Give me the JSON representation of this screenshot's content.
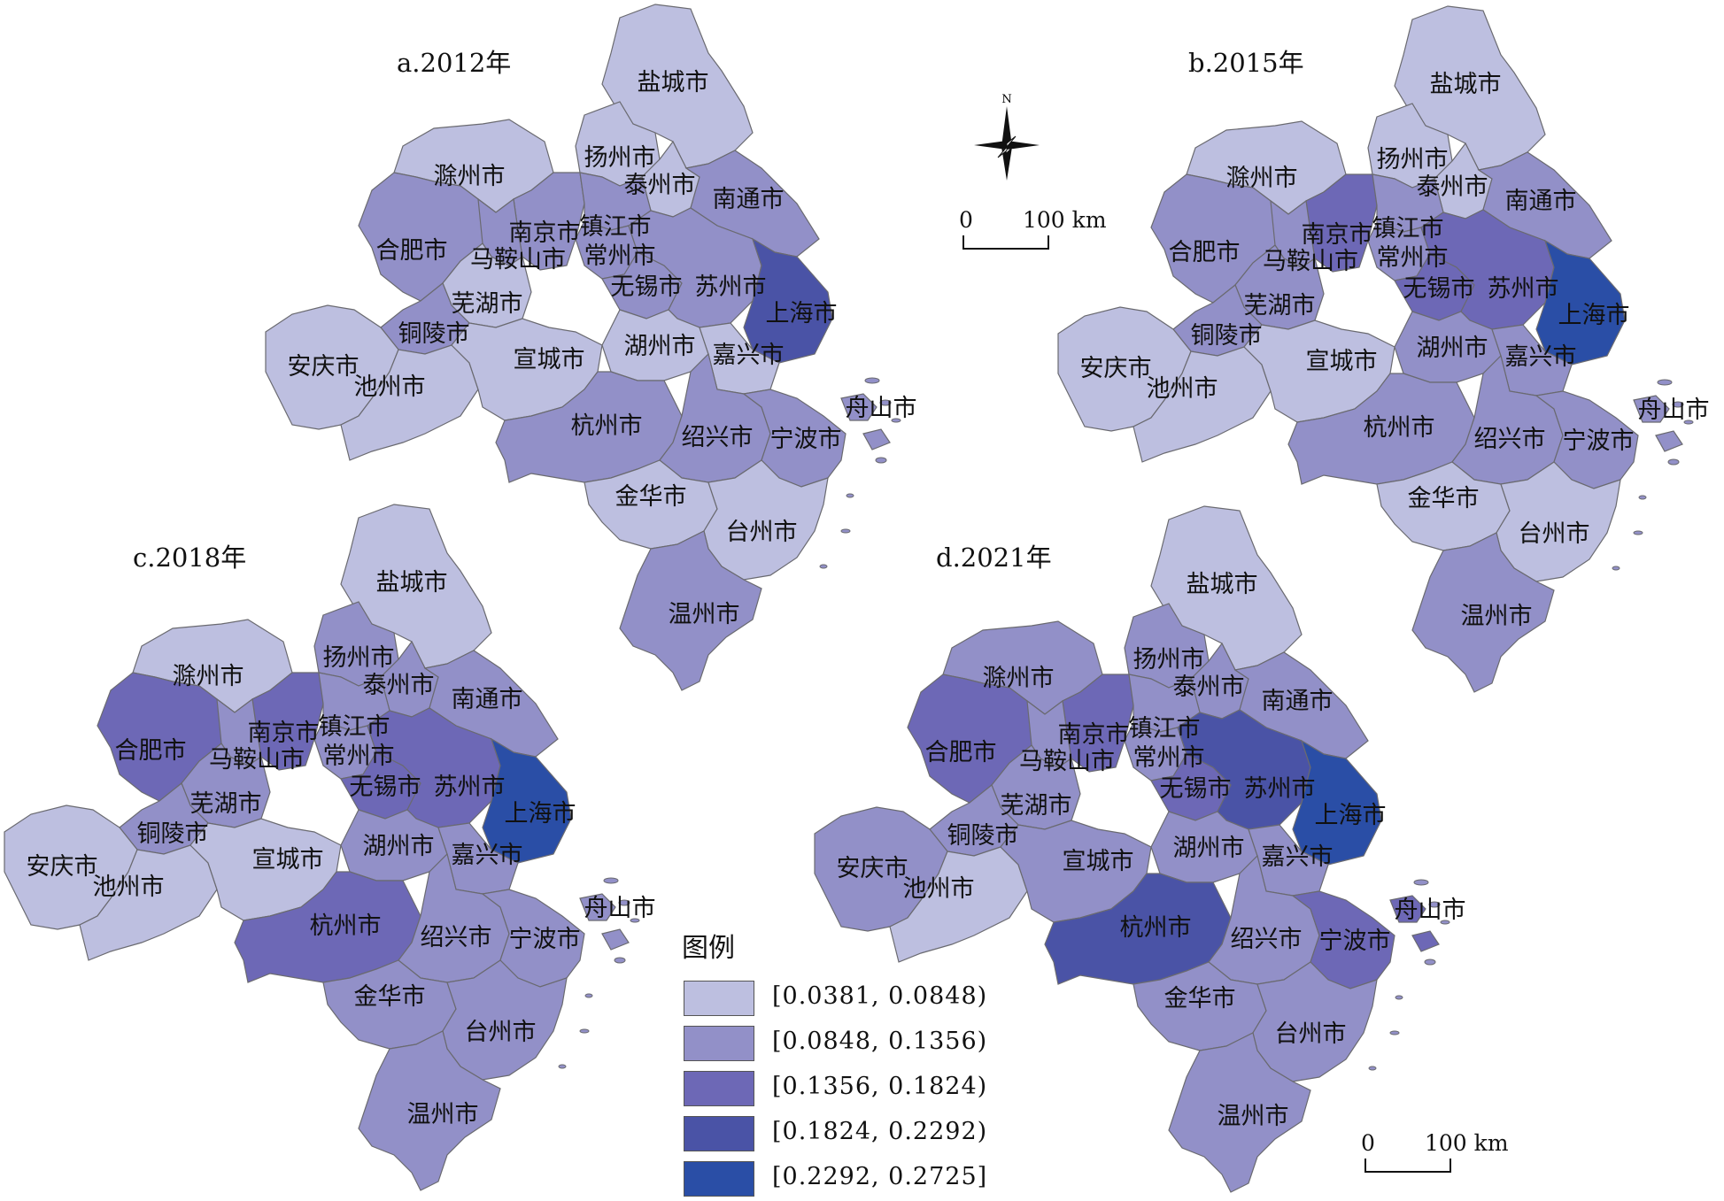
{
  "legend": {
    "title": "图例",
    "classes": [
      {
        "label": "[0.0381, 0.0848)",
        "color": "#bdbfe0"
      },
      {
        "label": "[0.0848, 0.1356)",
        "color": "#9290c8"
      },
      {
        "label": "[0.1356, 0.1824)",
        "color": "#6d68b6"
      },
      {
        "label": "[0.1824, 0.2292)",
        "color": "#4a53a6"
      },
      {
        "label": "[0.2292, 0.2725]",
        "color": "#2a4ea6"
      }
    ]
  },
  "compass": {
    "north_label": "N"
  },
  "scale": {
    "zero": "0",
    "distance": "100 km"
  },
  "panels": [
    {
      "title": "a.2012年",
      "classes": {
        "盐城市": 1,
        "扬州市": 1,
        "泰州市": 1,
        "南通市": 2,
        "滁州市": 1,
        "南京市": 2,
        "镇江市": 2,
        "常州市": 2,
        "合肥市": 2,
        "马鞍山市": 2,
        "芜湖市": 1,
        "铜陵市": 2,
        "无锡市": 2,
        "苏州市": 2,
        "上海市": 4,
        "安庆市": 1,
        "池州市": 1,
        "宣城市": 1,
        "湖州市": 1,
        "嘉兴市": 1,
        "杭州市": 2,
        "绍兴市": 2,
        "宁波市": 2,
        "舟山市": 2,
        "金华市": 1,
        "台州市": 1,
        "温州市": 2
      }
    },
    {
      "title": "b.2015年",
      "classes": {
        "盐城市": 1,
        "扬州市": 1,
        "泰州市": 1,
        "南通市": 2,
        "滁州市": 1,
        "南京市": 3,
        "镇江市": 2,
        "常州市": 2,
        "合肥市": 2,
        "马鞍山市": 2,
        "芜湖市": 2,
        "铜陵市": 2,
        "无锡市": 3,
        "苏州市": 3,
        "上海市": 5,
        "安庆市": 1,
        "池州市": 1,
        "宣城市": 1,
        "湖州市": 2,
        "嘉兴市": 2,
        "杭州市": 2,
        "绍兴市": 2,
        "宁波市": 2,
        "舟山市": 2,
        "金华市": 1,
        "台州市": 1,
        "温州市": 2
      }
    },
    {
      "title": "c.2018年",
      "classes": {
        "盐城市": 1,
        "扬州市": 2,
        "泰州市": 2,
        "南通市": 2,
        "滁州市": 1,
        "南京市": 3,
        "镇江市": 2,
        "常州市": 2,
        "合肥市": 3,
        "马鞍山市": 2,
        "芜湖市": 2,
        "铜陵市": 2,
        "无锡市": 3,
        "苏州市": 3,
        "上海市": 5,
        "安庆市": 1,
        "池州市": 1,
        "宣城市": 1,
        "湖州市": 2,
        "嘉兴市": 2,
        "杭州市": 3,
        "绍兴市": 2,
        "宁波市": 2,
        "舟山市": 2,
        "金华市": 2,
        "台州市": 2,
        "温州市": 2
      }
    },
    {
      "title": "d.2021年",
      "classes": {
        "盐城市": 1,
        "扬州市": 2,
        "泰州市": 2,
        "南通市": 2,
        "滁州市": 2,
        "南京市": 3,
        "镇江市": 2,
        "常州市": 2,
        "合肥市": 3,
        "马鞍山市": 2,
        "芜湖市": 2,
        "铜陵市": 2,
        "无锡市": 3,
        "苏州市": 4,
        "上海市": 5,
        "安庆市": 2,
        "池州市": 1,
        "宣城市": 2,
        "湖州市": 2,
        "嘉兴市": 2,
        "杭州市": 4,
        "绍兴市": 2,
        "宁波市": 3,
        "舟山市": 3,
        "金华市": 2,
        "台州市": 2,
        "温州市": 2
      }
    }
  ]
}
